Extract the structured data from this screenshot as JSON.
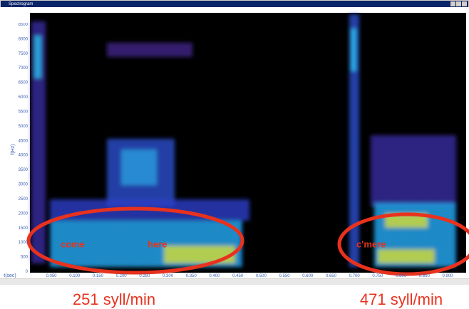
{
  "window": {
    "title": "Spectrogram"
  },
  "y_axis": {
    "label": "f(Hz)",
    "ticks": [
      "0",
      "500",
      "1000",
      "1500",
      "2000",
      "2500",
      "3000",
      "3500",
      "4000",
      "4500",
      "5000",
      "5500",
      "6000",
      "6500",
      "7000",
      "7500",
      "8000",
      "8500"
    ]
  },
  "x_axis": {
    "label": "t(sec)",
    "ticks": [
      "0.050",
      "0.100",
      "0.150",
      "0.200",
      "0.250",
      "0.300",
      "0.350",
      "0.400",
      "0.450",
      "0.500",
      "0.550",
      "0.600",
      "0.650",
      "0.700",
      "0.750",
      "0.800",
      "0.850",
      "0.900"
    ]
  },
  "annotations": [
    "come",
    "here",
    "c'mere"
  ],
  "captions": [
    "251 syll/min",
    "471 syll/min"
  ]
}
